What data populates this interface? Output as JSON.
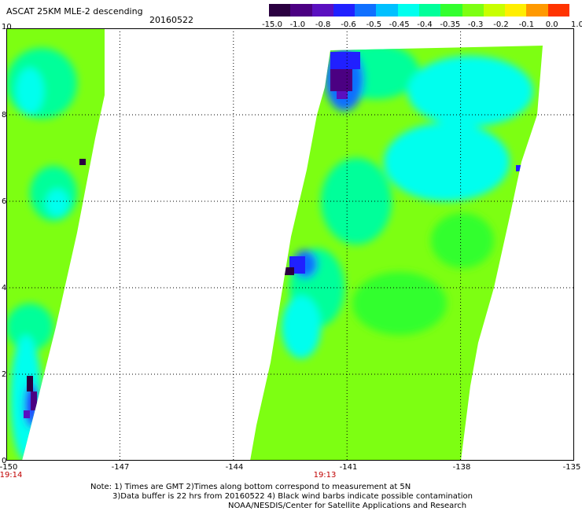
{
  "header": {
    "title": "ASCAT 25KM MLE-2 descending",
    "date": "20160522"
  },
  "colorbar": {
    "labels": [
      "-15.0",
      "-1.0",
      "-0.8",
      "-0.6",
      "-0.5",
      "-0.45",
      "-0.4",
      "-0.35",
      "-0.3",
      "-0.2",
      "-0.1",
      "0.0",
      "1.0"
    ],
    "colors": [
      "#2a0040",
      "#4b0082",
      "#5a10c0",
      "#2020ff",
      "#1070ff",
      "#00c0ff",
      "#00ffee",
      "#00ff9a",
      "#32ff2e",
      "#7dff12",
      "#c8ff00",
      "#ffee00",
      "#ff9900",
      "#ff3300"
    ]
  },
  "axes": {
    "y_ticks": [
      "0",
      "2",
      "4",
      "6",
      "8",
      "10"
    ],
    "x_ticks": [
      "-150",
      "-147",
      "-144",
      "-141",
      "-138",
      "-135"
    ]
  },
  "times": {
    "left": "19:14",
    "right": "19:13"
  },
  "notes": {
    "line1": "Note: 1) Times are GMT 2)Times along bottom correspond to measurement at 5N",
    "line2": "3)Data buffer is 22 hrs from 20160522 4) Black wind barbs indicate possible contamination",
    "line3": "NOAA/NESDIS/Center for Satellite Applications and Research"
  },
  "map_data": {
    "lon_range": [
      -150,
      -135
    ],
    "lat_range": [
      0,
      10
    ],
    "features": [
      {
        "kind": "low",
        "lon": -141.2,
        "lat": 9.0,
        "level": "-0.8"
      },
      {
        "kind": "low",
        "lon": -142.7,
        "lat": 4.7,
        "level": "-0.8"
      },
      {
        "kind": "low",
        "lon": -149.3,
        "lat": 1.2,
        "level": "-15.0"
      }
    ]
  }
}
